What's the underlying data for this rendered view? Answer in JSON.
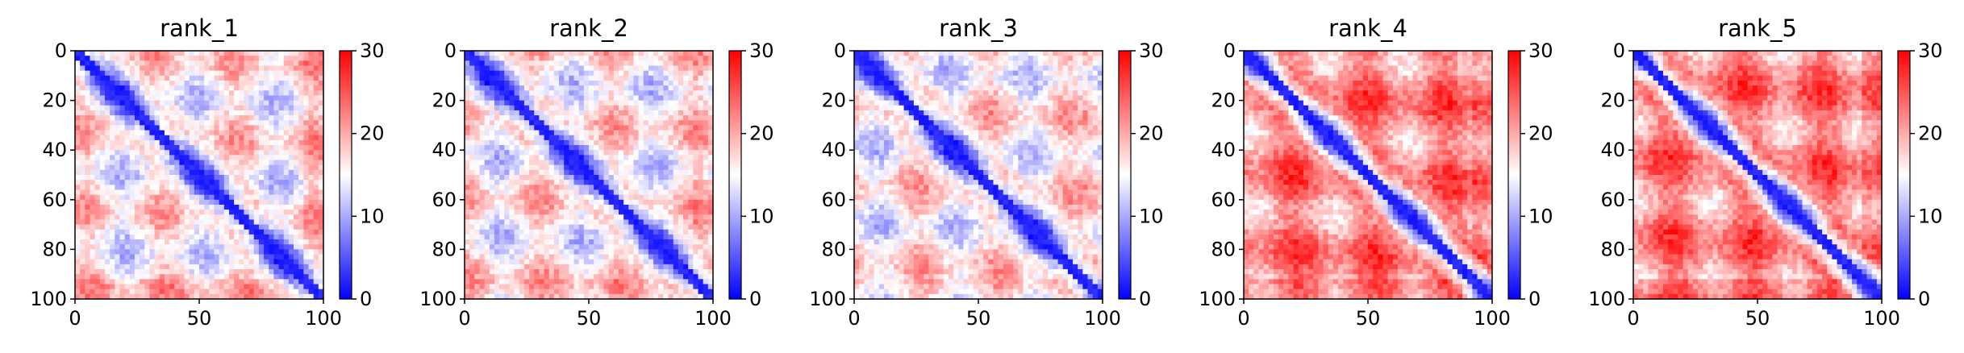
{
  "chart_data": [
    {
      "type": "heatmap",
      "title": "rank_1",
      "xlabel": "",
      "ylabel": "",
      "xlim": [
        0,
        100
      ],
      "ylim": [
        100,
        0
      ],
      "x_ticks": [
        "0",
        "50",
        "100"
      ],
      "y_ticks": [
        "0",
        "20",
        "40",
        "60",
        "80",
        "100"
      ],
      "colorbar": {
        "ticks": [
          "0",
          "10",
          "20",
          "30"
        ],
        "range": [
          0,
          30
        ],
        "colormap": "bwr"
      },
      "matrix_size": 100,
      "description": ""
    },
    {
      "type": "heatmap",
      "title": "rank_2",
      "xlabel": "",
      "ylabel": "",
      "xlim": [
        0,
        100
      ],
      "ylim": [
        100,
        0
      ],
      "x_ticks": [
        "0",
        "50",
        "100"
      ],
      "y_ticks": [
        "0",
        "20",
        "40",
        "60",
        "80",
        "100"
      ],
      "colorbar": {
        "ticks": [
          "0",
          "10",
          "20",
          "30"
        ],
        "range": [
          0,
          30
        ],
        "colormap": "bwr"
      },
      "matrix_size": 100,
      "description": ""
    },
    {
      "type": "heatmap",
      "title": "rank_3",
      "xlabel": "",
      "ylabel": "",
      "xlim": [
        0,
        100
      ],
      "ylim": [
        100,
        0
      ],
      "x_ticks": [
        "0",
        "50",
        "100"
      ],
      "y_ticks": [
        "0",
        "20",
        "40",
        "60",
        "80",
        "100"
      ],
      "colorbar": {
        "ticks": [
          "0",
          "10",
          "20",
          "30"
        ],
        "range": [
          0,
          30
        ],
        "colormap": "bwr"
      },
      "matrix_size": 100,
      "description": ""
    },
    {
      "type": "heatmap",
      "title": "rank_4",
      "xlabel": "",
      "ylabel": "",
      "xlim": [
        0,
        100
      ],
      "ylim": [
        100,
        0
      ],
      "x_ticks": [
        "0",
        "50",
        "100"
      ],
      "y_ticks": [
        "0",
        "20",
        "40",
        "60",
        "80",
        "100"
      ],
      "colorbar": {
        "ticks": [
          "0",
          "10",
          "20",
          "30"
        ],
        "range": [
          0,
          30
        ],
        "colormap": "bwr"
      },
      "matrix_size": 100,
      "description": ""
    },
    {
      "type": "heatmap",
      "title": "rank_5",
      "xlabel": "",
      "ylabel": "",
      "xlim": [
        0,
        100
      ],
      "ylim": [
        100,
        0
      ],
      "x_ticks": [
        "0",
        "50",
        "100"
      ],
      "y_ticks": [
        "0",
        "20",
        "40",
        "60",
        "80",
        "100"
      ],
      "colorbar": {
        "ticks": [
          "0",
          "10",
          "20",
          "30"
        ],
        "range": [
          0,
          30
        ],
        "colormap": "bwr"
      },
      "matrix_size": 100,
      "description": ""
    }
  ],
  "colors": {
    "low": "#0000ff",
    "mid": "#ffffff",
    "high": "#ff0000",
    "axis": "#000000"
  }
}
